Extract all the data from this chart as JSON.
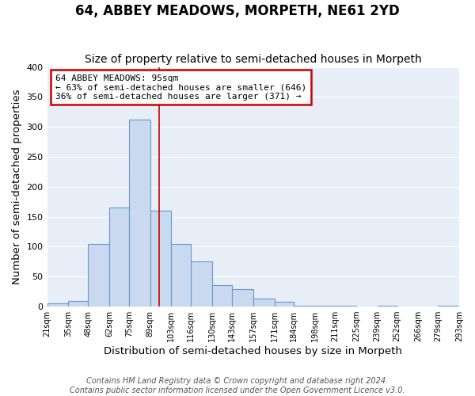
{
  "title": "64, ABBEY MEADOWS, MORPETH, NE61 2YD",
  "subtitle": "Size of property relative to semi-detached houses in Morpeth",
  "xlabel": "Distribution of semi-detached houses by size in Morpeth",
  "ylabel": "Number of semi-detached properties",
  "bins": [
    21,
    35,
    48,
    62,
    75,
    89,
    103,
    116,
    130,
    143,
    157,
    171,
    184,
    198,
    211,
    225,
    239,
    252,
    266,
    279,
    293
  ],
  "counts": [
    5,
    10,
    105,
    165,
    312,
    160,
    105,
    75,
    36,
    29,
    13,
    8,
    1,
    1,
    1,
    0,
    1,
    0,
    0,
    2
  ],
  "bar_color": "#c9d9ef",
  "bar_edge_color": "#6699cc",
  "property_size": 95,
  "vline_color": "#cc0000",
  "annotation_box_edge_color": "#cc0000",
  "annotation_text_line1": "64 ABBEY MEADOWS: 95sqm",
  "annotation_text_line2": "← 63% of semi-detached houses are smaller (646)",
  "annotation_text_line3": "36% of semi-detached houses are larger (371) →",
  "ylim": [
    0,
    400
  ],
  "yticks": [
    0,
    50,
    100,
    150,
    200,
    250,
    300,
    350,
    400
  ],
  "tick_labels": [
    "21sqm",
    "35sqm",
    "48sqm",
    "62sqm",
    "75sqm",
    "89sqm",
    "103sqm",
    "116sqm",
    "130sqm",
    "143sqm",
    "157sqm",
    "171sqm",
    "184sqm",
    "198sqm",
    "211sqm",
    "225sqm",
    "239sqm",
    "252sqm",
    "266sqm",
    "279sqm",
    "293sqm"
  ],
  "footer_line1": "Contains HM Land Registry data © Crown copyright and database right 2024.",
  "footer_line2": "Contains public sector information licensed under the Open Government Licence v3.0.",
  "plot_bg_color": "#e8eef8",
  "fig_bg_color": "#ffffff",
  "grid_color": "#ffffff",
  "title_fontsize": 12,
  "subtitle_fontsize": 10,
  "axis_label_fontsize": 9.5,
  "tick_fontsize": 7,
  "footer_fontsize": 7,
  "annotation_fontsize": 8
}
